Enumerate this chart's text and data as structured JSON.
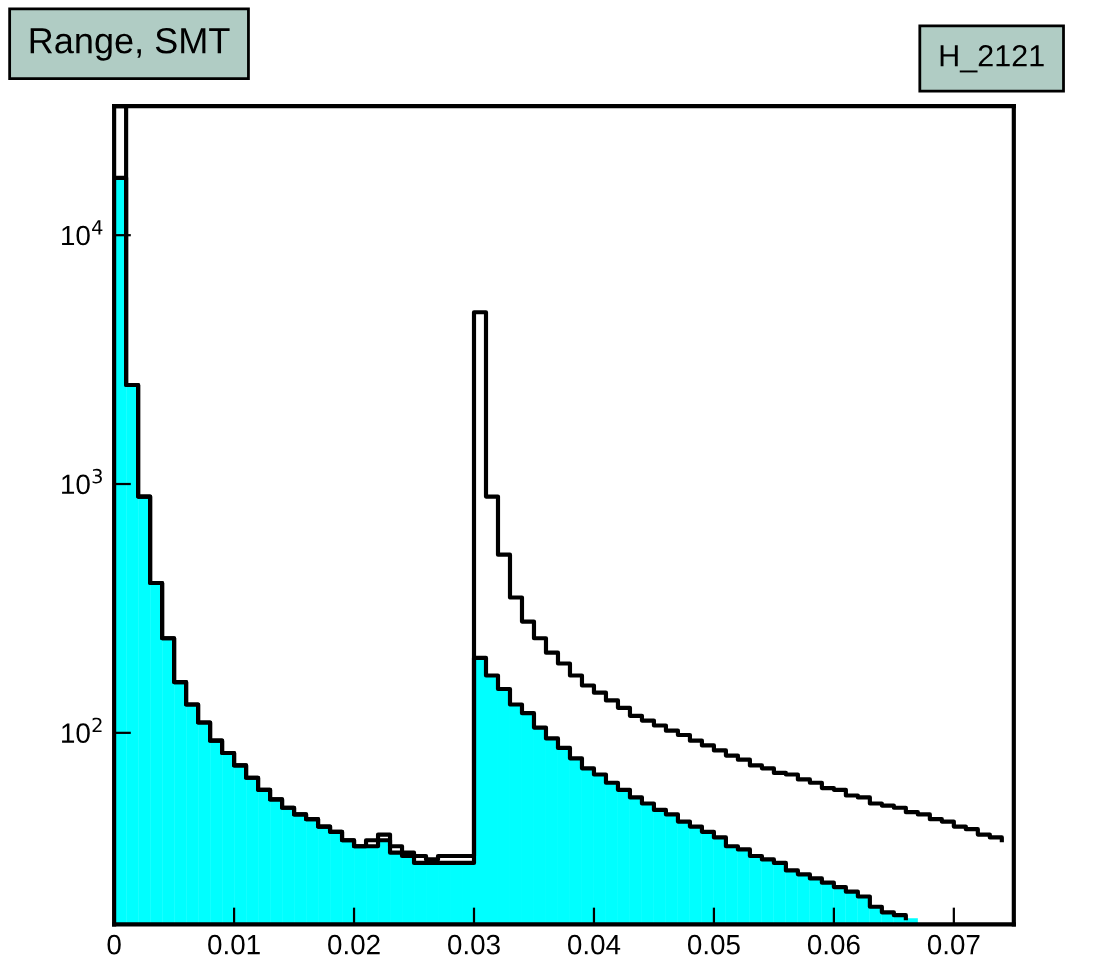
{
  "chart_data": {
    "type": "histogram",
    "title": "Range, SMT",
    "annotations": [
      "H_2121"
    ],
    "bins": [
      0,
      0.001,
      0.002,
      0.003,
      0.004,
      0.005,
      0.006,
      0.007,
      0.008,
      0.009,
      0.01,
      0.011,
      0.012,
      0.013,
      0.014,
      0.015,
      0.016,
      0.017,
      0.018,
      0.019,
      0.02,
      0.021,
      0.022,
      0.023,
      0.024,
      0.025,
      0.026,
      0.027,
      0.028,
      0.029,
      0.03,
      0.031,
      0.032,
      0.033,
      0.034,
      0.035,
      0.036,
      0.037,
      0.038,
      0.039,
      0.04,
      0.041,
      0.042,
      0.043,
      0.044,
      0.045,
      0.046,
      0.047,
      0.048,
      0.049,
      0.05,
      0.051,
      0.052,
      0.053,
      0.054,
      0.055,
      0.056,
      0.057,
      0.058,
      0.059,
      0.06,
      0.061,
      0.062,
      0.063,
      0.064,
      0.065,
      0.066,
      0.067,
      0.068,
      0.069,
      0.07,
      0.071,
      0.072,
      0.073,
      0.074,
      0.075
    ],
    "series": [
      {
        "color": "#00ffff",
        "values": [
          17000,
          2500,
          890,
          400,
          240,
          160,
          130,
          110,
          93,
          83,
          74,
          66,
          59,
          54,
          50,
          47,
          45,
          42,
          40,
          37,
          35,
          35,
          37,
          33,
          32,
          30,
          30,
          30,
          30,
          30,
          200,
          170,
          150,
          130,
          120,
          105,
          95,
          87,
          79,
          72,
          68,
          63,
          59,
          55,
          52,
          49,
          47,
          44,
          42,
          40,
          38,
          35,
          34,
          32,
          31,
          30,
          28,
          27,
          26,
          25,
          24,
          23,
          22,
          20,
          19,
          18.5,
          18,
          null,
          null,
          null,
          null,
          null,
          null,
          null,
          null
        ]
      },
      {
        "type": "step",
        "color": "#000000",
        "x": [
          0,
          0.001,
          0.002,
          0.003,
          0.004,
          0.005,
          0.006,
          0.007,
          0.008,
          0.009,
          0.01,
          0.011,
          0.012,
          0.013,
          0.014,
          0.015,
          0.016,
          0.017,
          0.018,
          0.019,
          0.02,
          0.021,
          0.022,
          0.023,
          0.024,
          0.025,
          0.026,
          0.027,
          0.028,
          0.029,
          0.03,
          0.031,
          0.032,
          0.033,
          0.034,
          0.035,
          0.036,
          0.037,
          0.038,
          0.039,
          0.04,
          0.041,
          0.042,
          0.043,
          0.044,
          0.045,
          0.046,
          0.047,
          0.048,
          0.049,
          0.05,
          0.051,
          0.052,
          0.053,
          0.054,
          0.055,
          0.056,
          0.057,
          0.058,
          0.059,
          0.06,
          0.061,
          0.062,
          0.063,
          0.064,
          0.065,
          0.066
        ],
        "values": [
          17000,
          2500,
          890,
          400,
          240,
          160,
          130,
          110,
          93,
          83,
          74,
          66,
          59,
          54,
          50,
          47,
          45,
          42,
          40,
          37,
          35,
          35,
          37,
          33,
          32,
          30,
          30,
          30,
          30,
          30,
          200,
          170,
          150,
          130,
          120,
          105,
          95,
          87,
          79,
          72,
          68,
          63,
          59,
          55,
          52,
          49,
          47,
          44,
          42,
          40,
          38,
          35,
          34,
          32,
          31,
          30,
          28,
          27,
          26,
          25,
          24,
          23,
          22,
          20,
          19,
          18.5,
          18
        ]
      },
      {
        "type": "step",
        "color": "#000000",
        "x": [
          0,
          0.001,
          0.002,
          0.003,
          0.004,
          0.005,
          0.006,
          0.007,
          0.008,
          0.009,
          0.01,
          0.011,
          0.012,
          0.013,
          0.014,
          0.015,
          0.016,
          0.017,
          0.018,
          0.019,
          0.02,
          0.021,
          0.022,
          0.023,
          0.024,
          0.025,
          0.026,
          0.027,
          0.028,
          0.029,
          0.03,
          0.031,
          0.032,
          0.033,
          0.034,
          0.035,
          0.036,
          0.037,
          0.038,
          0.039,
          0.04,
          0.041,
          0.042,
          0.043,
          0.044,
          0.045,
          0.046,
          0.047,
          0.048,
          0.049,
          0.05,
          0.051,
          0.052,
          0.053,
          0.054,
          0.055,
          0.056,
          0.057,
          0.058,
          0.059,
          0.06,
          0.061,
          0.062,
          0.063,
          0.064,
          0.065,
          0.066,
          0.067,
          0.068,
          0.069,
          0.07,
          0.071,
          0.072,
          0.073,
          0.074
        ],
        "values": [
          33000,
          2500,
          890,
          400,
          240,
          160,
          130,
          110,
          93,
          83,
          74,
          66,
          59,
          54,
          50,
          47,
          45,
          42,
          40,
          37,
          35,
          37,
          39,
          35,
          33,
          32,
          31,
          32,
          32,
          32,
          4900,
          890,
          520,
          350,
          280,
          240,
          210,
          190,
          170,
          155,
          145,
          135,
          126,
          117,
          112,
          107,
          102,
          98,
          93,
          89,
          85,
          81,
          78,
          74,
          72,
          69,
          68,
          65,
          63,
          60,
          59,
          56,
          55,
          52,
          51,
          50,
          48,
          47,
          45,
          44,
          42,
          41,
          39,
          38,
          37
        ]
      }
    ],
    "log": "y",
    "xlim": [
      0,
      0.075
    ],
    "ylim": [
      17,
      33000
    ],
    "xticks": [
      0,
      0.01,
      0.02,
      0.03,
      0.04,
      0.05,
      0.06,
      0.07
    ],
    "yticks": [
      {
        "value": 100,
        "label": "10$^{2}$"
      },
      {
        "value": 1000,
        "label": "10$^{3}$"
      },
      {
        "value": 10000,
        "label": "10$^{4}$"
      }
    ],
    "grid": false,
    "legend": false
  }
}
